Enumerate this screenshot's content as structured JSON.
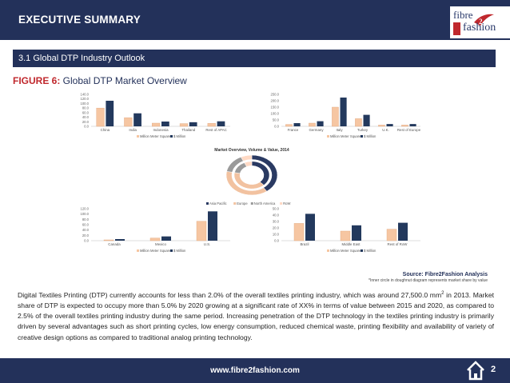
{
  "header": {
    "title": "EXECUTIVE SUMMARY",
    "logo_line1": "fibre",
    "logo_line2": "fashion",
    "logo_number": "2"
  },
  "section": {
    "title": "3.1 Global DTP Industry Outlook"
  },
  "figure": {
    "label": "FIGURE 6:",
    "title": " Global DTP Market Overview"
  },
  "legend_labels": {
    "volume": "Million Meter Square",
    "value": "$ Million"
  },
  "colors": {
    "volume": "#f6c6a2",
    "value": "#23395d",
    "pie1": "#2a3a62",
    "pie2": "#f2c2a0",
    "pie3": "#9a9a9a",
    "pie4": "#ffd9c4"
  },
  "chart_data": [
    {
      "type": "bar",
      "categories": [
        "China",
        "India",
        "Indonesia",
        "Thailand",
        "Rest of APAC"
      ],
      "series": [
        {
          "name": "Million Meter Square",
          "values": [
            80,
            38,
            14,
            12,
            13
          ]
        },
        {
          "name": "$ Million",
          "values": [
            112,
            57,
            21,
            18,
            22
          ]
        }
      ],
      "yticks": [
        "0.0",
        "20.0",
        "40.0",
        "60.0",
        "80.0",
        "100.0",
        "120.0",
        "140.0"
      ],
      "ylim": [
        0,
        140
      ]
    },
    {
      "type": "bar",
      "categories": [
        "France",
        "Germany",
        "Italy",
        "Turkey",
        "U.K.",
        "Rest of Europe"
      ],
      "series": [
        {
          "name": "Million Meter Square",
          "values": [
            15,
            25,
            150,
            60,
            10,
            10
          ]
        },
        {
          "name": "$ Million",
          "values": [
            25,
            40,
            225,
            90,
            18,
            18
          ]
        }
      ],
      "yticks": [
        "0.0",
        "50.0",
        "100.0",
        "150.0",
        "200.0",
        "250.0"
      ],
      "ylim": [
        0,
        250
      ]
    },
    {
      "type": "pie",
      "title": "Market Overview, Volume & Value, 2014",
      "categories": [
        "Asia Pacific",
        "Europe",
        "North America",
        "RoW"
      ],
      "rings": [
        {
          "values": [
            40,
            38,
            15,
            7
          ]
        },
        {
          "values": [
            38,
            40,
            15,
            7
          ]
        }
      ]
    },
    {
      "type": "bar",
      "categories": [
        "Canada",
        "Mexico",
        "U.S."
      ],
      "series": [
        {
          "name": "Million Meter Square",
          "values": [
            3,
            10,
            73
          ]
        },
        {
          "name": "$ Million",
          "values": [
            6,
            16,
            110
          ]
        }
      ],
      "yticks": [
        "0.0",
        "20.0",
        "40.0",
        "60.0",
        "80.0",
        "100.0",
        "120.0"
      ],
      "ylim": [
        0,
        120
      ]
    },
    {
      "type": "bar",
      "categories": [
        "Brazil",
        "Middle East",
        "Rest of RoW"
      ],
      "series": [
        {
          "name": "Million Meter Square",
          "values": [
            27,
            15,
            18
          ]
        },
        {
          "name": "$ Million",
          "values": [
            42,
            24,
            28
          ]
        }
      ],
      "yticks": [
        "0.0",
        "10.0",
        "20.0",
        "30.0",
        "40.0",
        "50.0"
      ],
      "ylim": [
        0,
        50
      ]
    }
  ],
  "source": {
    "text": "Source: Fibre2Fashion Analysis",
    "note": "*Inner circle in doughnut diagram represents market share by value"
  },
  "paragraph": {
    "p1": "Digital Textiles Printing (DTP) currently accounts for less than 2.0% of the overall textiles printing industry, which was around 27,500.0 mm",
    "sup": "2",
    "p2": " in 2013. Market share of DTP is expected to occupy more than 5.0% by 2020 growing at a significant rate of XX% in terms of value between 2015 and 2020, as compared to 2.5% of the overall textiles printing industry during the same period. Increasing penetration of the DTP technology in the textiles printing industry is primarily driven by several advantages such as short printing cycles, low energy consumption, reduced chemical waste, printing flexibility and availability  of variety of creative design options as compared to traditional analog printing technology."
  },
  "footer": {
    "url": "www.fibre2fashion.com",
    "page": "2"
  }
}
